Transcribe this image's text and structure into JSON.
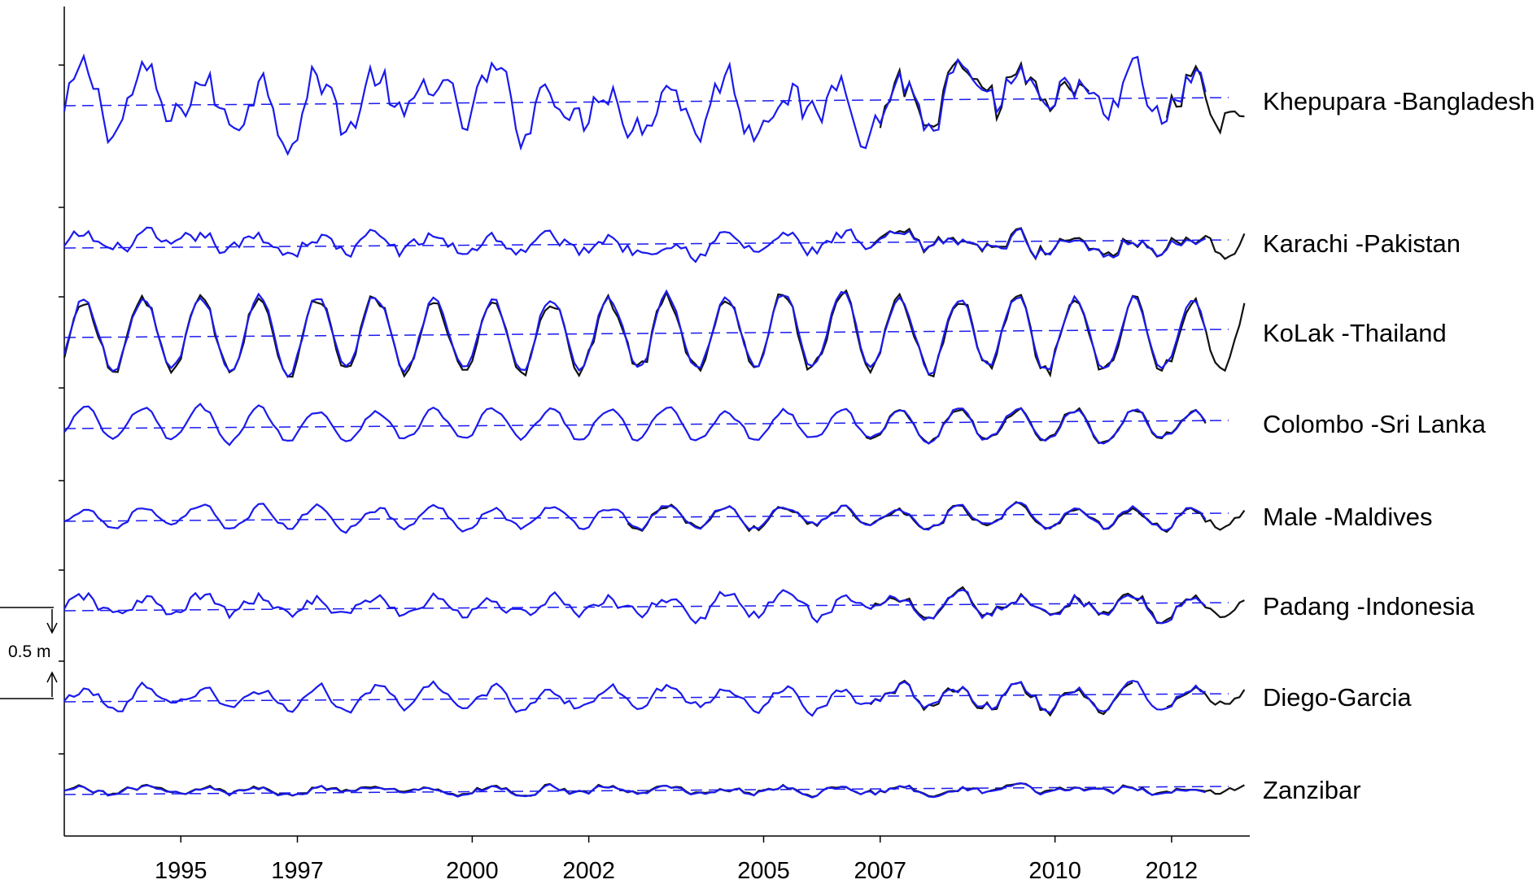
{
  "chart_data": {
    "type": "line",
    "title": "",
    "xlabel": "",
    "ylabel": "",
    "x_ticks": [
      "1995",
      "1997",
      "2000",
      "2002",
      "2005",
      "2007",
      "2010",
      "2012"
    ],
    "xlim": [
      1993.0,
      2013.3
    ],
    "grid": false,
    "legend": "none",
    "series_colors": {
      "blue": "#1a1aee",
      "black": "#111111"
    },
    "scale_bar": {
      "label": "0.5 m",
      "value_m": 0.5
    },
    "stations": [
      {
        "name": "Khepupara -Bangladesh",
        "baseline": 0,
        "amplitude": 0.3,
        "seasonal": 0.45,
        "noise": 0.7,
        "trend": 0.0,
        "black_from": 2007.0,
        "black_gap": [
          2010.6,
          2011.9
        ],
        "black_to": 2013.3,
        "black_offset": 0.0
      },
      {
        "name": "Karachi -Pakistan",
        "baseline": 0,
        "amplitude": 0.09,
        "seasonal": 0.45,
        "noise": 0.9,
        "trend": 0.0,
        "black_from": 2006.8,
        "black_gap": null,
        "black_to": 2013.3,
        "black_offset": 0.02
      },
      {
        "name": "KoLak -Thailand",
        "baseline": 0,
        "amplitude": 0.2,
        "seasonal": 1.0,
        "noise": 0.25,
        "trend": 0.05,
        "black_from": 1993.0,
        "black_gap": null,
        "black_to": 2013.3,
        "black_offset": -0.03
      },
      {
        "name": "Colombo -Sri Lanka",
        "baseline": 0,
        "amplitude": 0.1,
        "seasonal": 0.85,
        "noise": 0.35,
        "trend": 0.0,
        "black_from": 2006.7,
        "black_gap": null,
        "black_to": 2012.6,
        "black_offset": 0.0
      },
      {
        "name": "Male -Maldives",
        "baseline": 0,
        "amplitude": 0.08,
        "seasonal": 0.7,
        "noise": 0.45,
        "trend": 0.0,
        "black_from": 2002.6,
        "black_gap": null,
        "black_to": 2013.3,
        "black_offset": -0.01
      },
      {
        "name": "Padang -Indonesia",
        "baseline": 0,
        "amplitude": 0.1,
        "seasonal": 0.55,
        "noise": 0.7,
        "trend": 0.05,
        "black_from": 2006.8,
        "black_gap": null,
        "black_to": 2013.3,
        "black_offset": 0.01
      },
      {
        "name": "Diego-Garcia",
        "baseline": 0,
        "amplitude": 0.1,
        "seasonal": 0.55,
        "noise": 0.55,
        "trend": 0.1,
        "black_from": 2006.8,
        "black_gap": [
          2011.4,
          2011.9
        ],
        "black_to": 2013.3,
        "black_offset": -0.01
      },
      {
        "name": "Zanzibar",
        "baseline": 0,
        "amplitude": 0.04,
        "seasonal": 0.45,
        "noise": 0.75,
        "trend": 0.08,
        "black_from": 1993.0,
        "black_gap": null,
        "black_to": 2013.3,
        "black_offset": 0.01
      }
    ]
  }
}
